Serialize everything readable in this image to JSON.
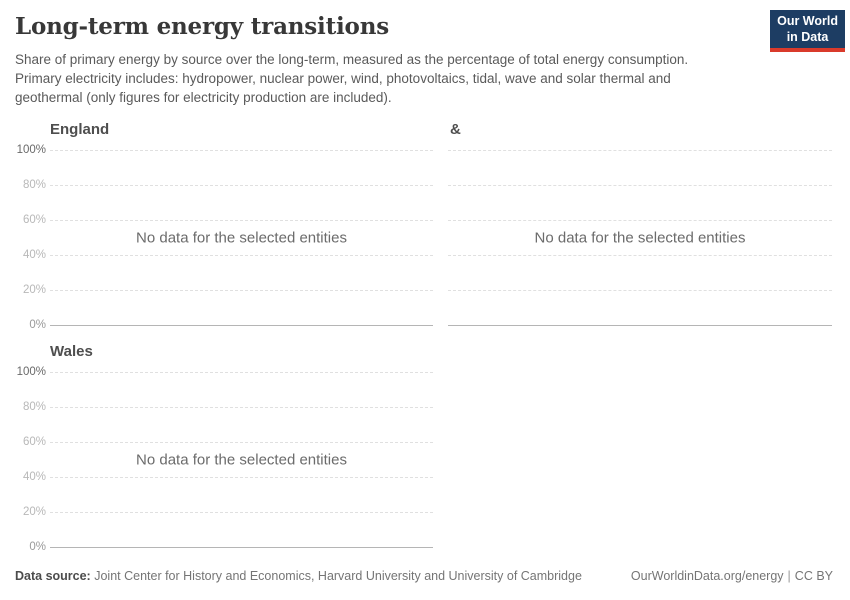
{
  "header": {
    "title": "Long-term energy transitions",
    "subtitle": "Share of primary energy by source over the long-term, measured as the percentage of total energy consumption. Primary electricity includes: hydropower, nuclear power, wind, photovoltaics, tidal, wave and solar thermal and geothermal (only figures for electricity production are included).",
    "logo": {
      "line1": "Our World",
      "line2": "in Data",
      "bg_color": "#1d3d63",
      "accent_color": "#d93a2b"
    }
  },
  "chart_data": [
    {
      "type": "line",
      "title": "England",
      "no_data_message": "No data for the selected entities",
      "ylim": [
        0,
        100
      ],
      "yticks": [
        "100%",
        "80%",
        "60%",
        "40%",
        "20%",
        "0%"
      ],
      "grid": true,
      "legend": "none",
      "series": []
    },
    {
      "type": "line",
      "title": "&",
      "no_data_message": "No data for the selected entities",
      "ylim": [
        0,
        100
      ],
      "yticks": [],
      "grid": true,
      "legend": "none",
      "series": []
    },
    {
      "type": "line",
      "title": "Wales",
      "no_data_message": "No data for the selected entities",
      "ylim": [
        0,
        100
      ],
      "yticks": [
        "100%",
        "80%",
        "60%",
        "40%",
        "20%",
        "0%"
      ],
      "grid": true,
      "legend": "none",
      "series": []
    }
  ],
  "footer": {
    "datasource_label": "Data source:",
    "datasource_text": "Joint Center for History and Economics, Harvard University and University of Cambridge",
    "link_text": "OurWorldinData.org/energy",
    "separator": "|",
    "license_text": "CC BY"
  },
  "colors": {
    "grid_dashed": "#e0e0e0",
    "axis_zero_line": "#b5b5b5",
    "accent_navy": "#1d3d63",
    "accent_red": "#d93a2b"
  }
}
